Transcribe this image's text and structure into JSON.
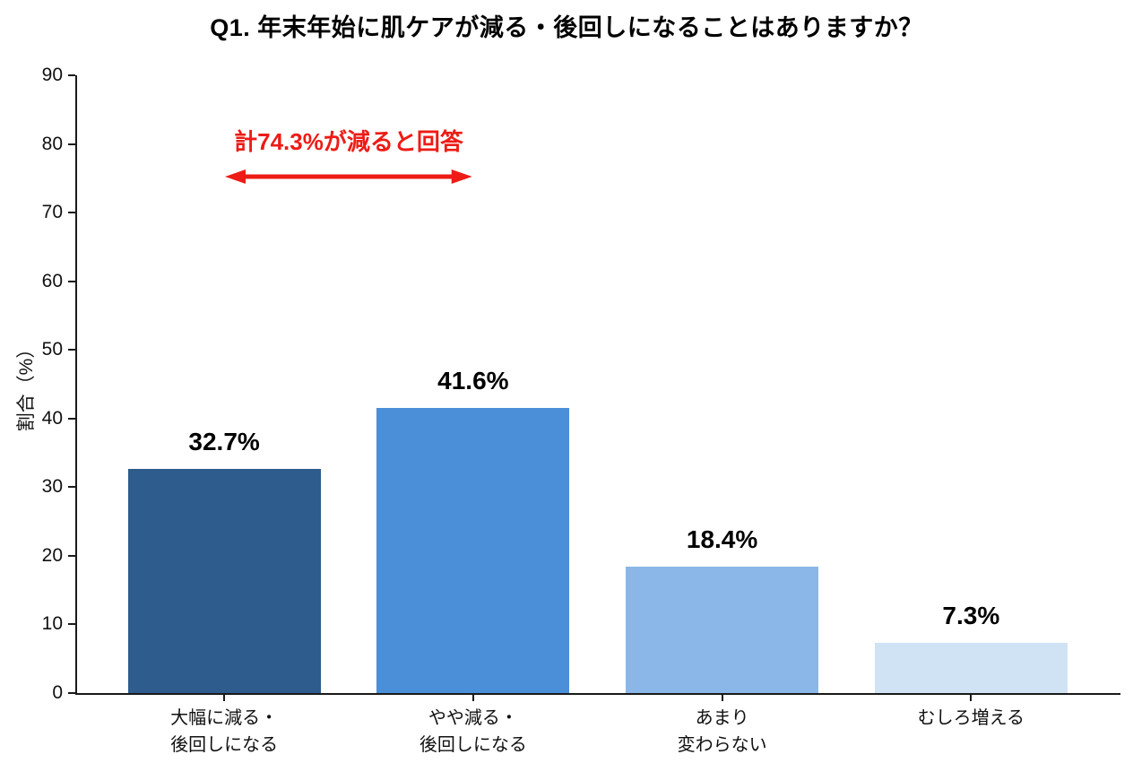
{
  "chart_data": {
    "type": "bar",
    "title": "Q1. 年末年始に肌ケアが減る・後回しになることはありますか？",
    "xlabel": "",
    "ylabel": "割合（%）",
    "ylim": [
      0,
      90
    ],
    "ytick_step": 10,
    "grid": false,
    "legend": "none",
    "categories": [
      "大幅に減る・\n後回しになる",
      "やや減る・\n後回しになる",
      "あまり\n変わらない",
      "むしろ増える"
    ],
    "values": [
      32.7,
      41.6,
      18.4,
      7.3
    ],
    "value_labels": [
      "32.7%",
      "41.6%",
      "18.4%",
      "7.3%"
    ],
    "bar_colors": [
      "#2e5c8c",
      "#4a8fd8",
      "#8bb7e8",
      "#d0e3f5"
    ],
    "axis_color": "#1a1a1a",
    "text_color": "#000000",
    "annotation": {
      "text": "計74.3%が減ると回答",
      "color": "#ed1c16",
      "arrow_from_category": 0,
      "arrow_to_category": 1,
      "arrow_y_value": 75.3,
      "text_y_value": 80.3
    }
  }
}
